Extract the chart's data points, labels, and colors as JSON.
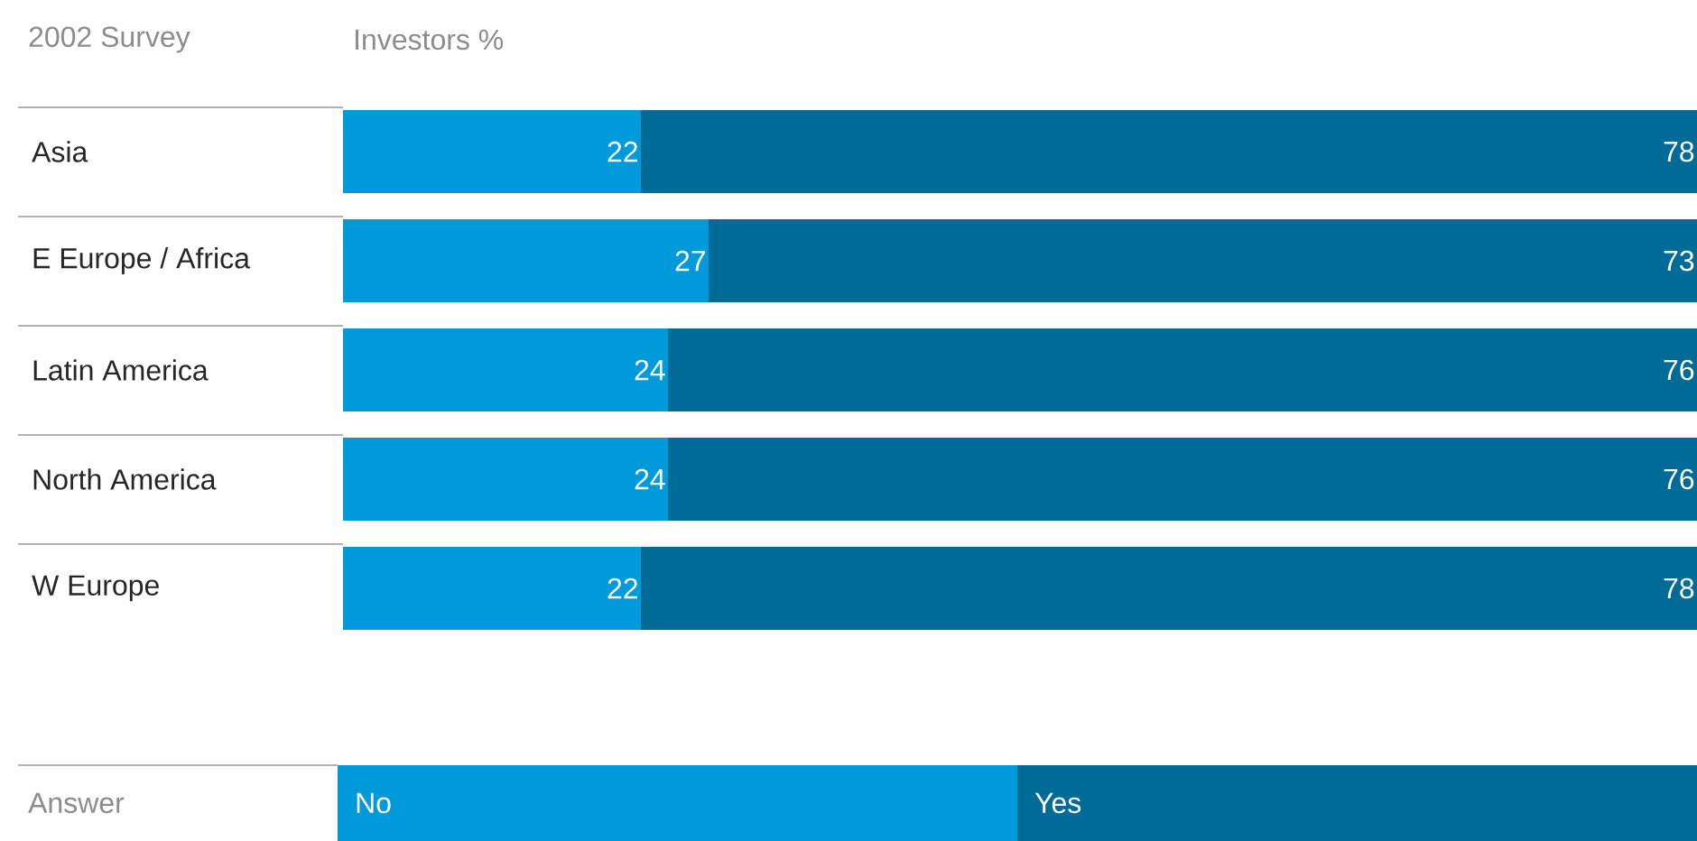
{
  "chart_data": {
    "type": "bar",
    "orientation": "horizontal",
    "stacked": true,
    "title": "2002 Survey",
    "xlabel": "Investors %",
    "legend_title": "Answer",
    "legend": "bottom",
    "tick_labels": "y",
    "data_labels": true,
    "xlim": [
      0,
      100
    ],
    "categories": [
      "Asia",
      "E Europe / Africa",
      "Latin America",
      "North America",
      "W Europe"
    ],
    "series": [
      {
        "name": "No",
        "color": "#0099d9",
        "values": [
          22,
          27,
          24,
          24,
          22
        ]
      },
      {
        "name": "Yes",
        "color": "#006b96",
        "values": [
          78,
          73,
          76,
          76,
          78
        ]
      }
    ]
  }
}
